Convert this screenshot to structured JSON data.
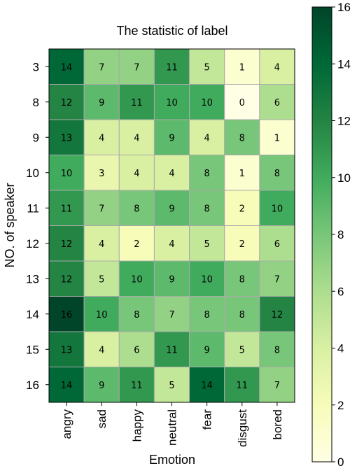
{
  "chart_data": {
    "type": "heatmap",
    "title": "The statistic of label",
    "xlabel": "Emotion",
    "ylabel": "NO. of speaker",
    "x_categories": [
      "angry",
      "sad",
      "happy",
      "neutral",
      "fear",
      "disgust",
      "bored"
    ],
    "y_categories": [
      "3",
      "8",
      "9",
      "10",
      "11",
      "12",
      "13",
      "14",
      "15",
      "16"
    ],
    "values": [
      [
        14,
        7,
        7,
        11,
        5,
        1,
        4
      ],
      [
        12,
        9,
        11,
        10,
        10,
        0,
        6
      ],
      [
        13,
        4,
        4,
        9,
        4,
        8,
        1
      ],
      [
        10,
        3,
        4,
        4,
        8,
        1,
        8
      ],
      [
        11,
        7,
        8,
        9,
        8,
        2,
        10
      ],
      [
        12,
        4,
        2,
        4,
        5,
        2,
        6
      ],
      [
        12,
        5,
        10,
        9,
        10,
        8,
        7
      ],
      [
        16,
        10,
        8,
        7,
        8,
        8,
        12
      ],
      [
        13,
        4,
        6,
        11,
        9,
        5,
        8
      ],
      [
        14,
        9,
        11,
        5,
        14,
        11,
        7
      ]
    ],
    "colorbar": {
      "range": [
        0,
        16
      ],
      "ticks": [
        "0",
        "2",
        "4",
        "6",
        "8",
        "10",
        "12",
        "14",
        "16"
      ],
      "colormap": "YlGn",
      "position": "right"
    },
    "colors": {
      "low": "#ffffe5",
      "high": "#004529",
      "cell_border": "#aaaaaa"
    }
  }
}
